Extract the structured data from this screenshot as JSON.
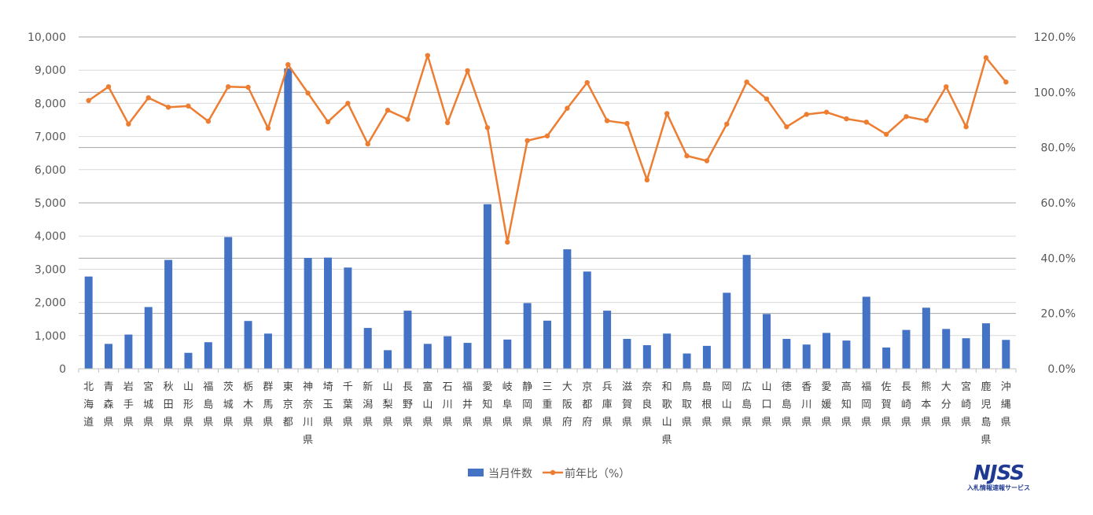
{
  "chart_data": {
    "type": "bar",
    "categories": [
      "北海道",
      "青森県",
      "岩手県",
      "宮城県",
      "秋田県",
      "山形県",
      "福島県",
      "茨城県",
      "栃木県",
      "群馬県",
      "東京都",
      "神奈川県",
      "埼玉県",
      "千葉県",
      "新潟県",
      "山梨県",
      "長野県",
      "富山県",
      "石川県",
      "福井県",
      "愛知県",
      "岐阜県",
      "静岡県",
      "三重県",
      "大阪府",
      "京都府",
      "兵庫県",
      "滋賀県",
      "奈良県",
      "和歌山県",
      "鳥取県",
      "島根県",
      "岡山県",
      "広島県",
      "山口県",
      "徳島県",
      "香川県",
      "愛媛県",
      "高知県",
      "福岡県",
      "佐賀県",
      "長崎県",
      "熊本県",
      "大分県",
      "宮崎県",
      "鹿児島県",
      "沖縄県"
    ],
    "series": [
      {
        "name": "当月件数",
        "type": "bar",
        "axis": "left",
        "color": "#4472c4",
        "values": [
          2780,
          750,
          1030,
          1860,
          3280,
          480,
          800,
          3970,
          1440,
          1060,
          9050,
          3340,
          3350,
          3050,
          1230,
          560,
          1750,
          750,
          980,
          780,
          4960,
          880,
          1980,
          1450,
          3600,
          2930,
          1750,
          900,
          710,
          1060,
          460,
          690,
          2290,
          3430,
          1650,
          900,
          730,
          1080,
          850,
          2170,
          640,
          1170,
          1840,
          1200,
          920,
          1370,
          870
        ]
      },
      {
        "name": "前年比（%）",
        "type": "line",
        "axis": "right",
        "color": "#ed7d31",
        "values": [
          97.0,
          102.0,
          88.5,
          98.0,
          94.6,
          95.0,
          89.5,
          102.0,
          101.8,
          87.0,
          110.0,
          99.7,
          89.3,
          96.0,
          81.3,
          93.5,
          90.2,
          113.3,
          89.0,
          107.8,
          87.2,
          45.8,
          82.5,
          84.2,
          94.2,
          103.5,
          89.7,
          88.7,
          68.3,
          92.3,
          77.0,
          75.2,
          88.5,
          103.7,
          97.6,
          87.5,
          92.0,
          92.8,
          90.4,
          89.2,
          84.8,
          91.2,
          89.8,
          102.0,
          87.5,
          112.5,
          103.7
        ]
      }
    ],
    "y_left": {
      "ylim": [
        0,
        10000
      ],
      "ticks": [
        "0",
        "1,000",
        "2,000",
        "3,000",
        "4,000",
        "5,000",
        "6,000",
        "7,000",
        "8,000",
        "9,000",
        "10,000"
      ]
    },
    "y_right": {
      "ylim": [
        0,
        120
      ],
      "ticks": [
        "0.0%",
        "20.0%",
        "40.0%",
        "60.0%",
        "80.0%",
        "100.0%",
        "120.0%"
      ]
    },
    "grid": true,
    "legend_position": "bottom"
  },
  "logo": {
    "mark": "NJSS",
    "subtitle": "入札情報速報サービス"
  }
}
